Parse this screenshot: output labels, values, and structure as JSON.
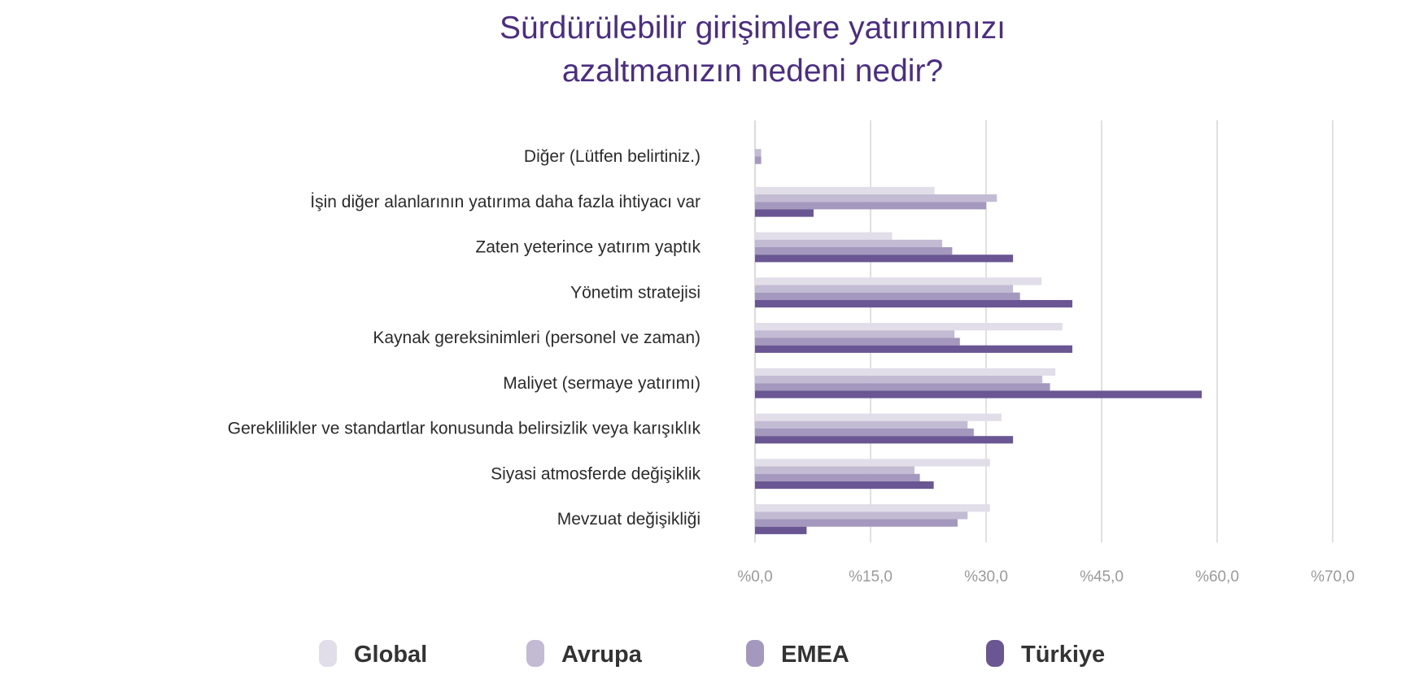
{
  "chart_data": {
    "type": "bar",
    "orientation": "horizontal",
    "title": [
      "Sürdürülebilir girişimlere yatırımınızı",
      "azaltmanızın nedeni nedir?"
    ],
    "categories": [
      "Diğer (Lütfen belirtiniz.)",
      "İşin diğer alanlarının yatırıma daha fazla ihtiyacı var",
      "Zaten yeterince yatırım yaptık",
      "Yönetim stratejisi",
      "Kaynak gereksinimleri (personel ve zaman)",
      "Maliyet (sermaye yatırımı)",
      "Gereklilikler ve standartlar konusunda belirsizlik veya karışıklık",
      "Siyasi atmosferde değişiklik",
      "Mevzuat değişikliği"
    ],
    "series": [
      {
        "name": "Global",
        "color": "#e1dde9",
        "values": [
          0,
          23.3,
          17.8,
          37.2,
          39.9,
          39.0,
          32.0,
          30.5,
          30.5
        ]
      },
      {
        "name": "Avrupa",
        "color": "#c3bad4",
        "values": [
          0.8,
          31.4,
          24.3,
          33.5,
          25.9,
          37.3,
          27.6,
          20.7,
          27.6
        ]
      },
      {
        "name": "EMEA",
        "color": "#a598bf",
        "values": [
          0.8,
          30.0,
          25.6,
          34.4,
          26.6,
          38.3,
          28.4,
          21.4,
          26.3
        ]
      },
      {
        "name": "Türkiye",
        "color": "#6b5694",
        "values": [
          0,
          7.6,
          33.5,
          41.2,
          41.2,
          58.0,
          33.5,
          23.2,
          6.7
        ]
      }
    ],
    "xticks": [
      0,
      15,
      30,
      45,
      60,
      70
    ],
    "xtick_labels": [
      "%0,0",
      "%15,0",
      "%30,0",
      "%45,0",
      "%60,0",
      "%70,0"
    ],
    "xlim": [
      0,
      75
    ],
    "xlabel": "",
    "ylabel": "",
    "grid": true,
    "legend_position": "bottom"
  }
}
